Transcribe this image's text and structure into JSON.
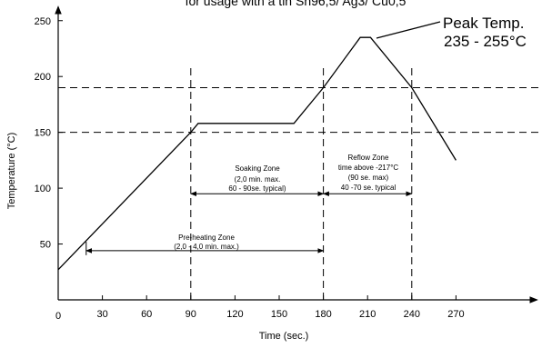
{
  "chart_data": {
    "type": "line",
    "title": "for usage with a tin Sn96,5/ Ag3/ Cu0,5",
    "xlabel": "Time (sec.)",
    "ylabel": "Temperature (°C)",
    "xlim": [
      0,
      300
    ],
    "ylim": [
      0,
      260
    ],
    "x_ticks": [
      0,
      30,
      60,
      90,
      120,
      150,
      180,
      210,
      240,
      270
    ],
    "y_ticks": [
      50,
      100,
      150,
      200,
      250
    ],
    "series": [
      {
        "x": [
          0,
          90,
          95,
          160,
          180,
          205,
          212,
          240,
          270
        ],
        "y": [
          27,
          150,
          158,
          158,
          190,
          235,
          235,
          190,
          125
        ]
      }
    ],
    "reference_lines": {
      "horizontal_dashed": [
        150,
        190
      ],
      "vertical_dashed": [
        90,
        180,
        240
      ]
    },
    "annotations": {
      "peak": {
        "line1": "Peak Temp.",
        "line2": "235 - 255°C"
      },
      "preheating": {
        "line1": "Pre-heating Zone",
        "line2": "(2,0 - 4,0 min. max.)"
      },
      "soaking": {
        "line1": "Soaking Zone",
        "line2": "(2,0 min. max.",
        "line3": "60 - 90se. typical)"
      },
      "reflow": {
        "line1": "Reflow Zone",
        "line2": "time above -217°C",
        "line3": "(90 se. max)",
        "line4": "40 -70 se. typical"
      }
    }
  }
}
